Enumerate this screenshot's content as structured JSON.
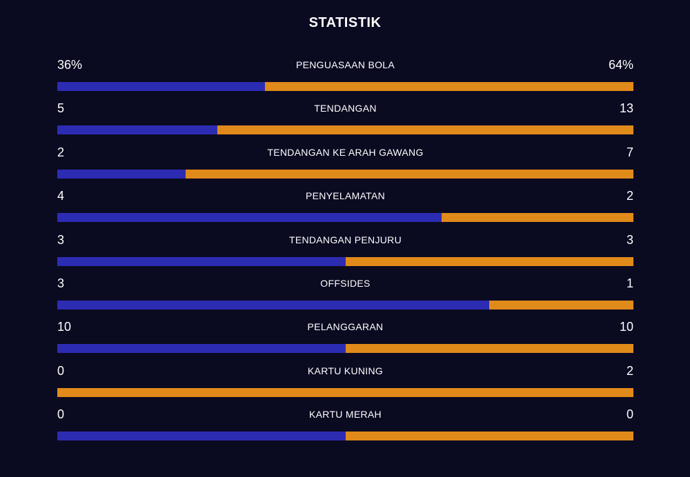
{
  "title": "STATISTIK",
  "colors": {
    "home": "#2c2cb3",
    "away": "#e08a1a",
    "background": "#0a0a21"
  },
  "stats": [
    {
      "label": "PENGUASAAN BOLA",
      "home": "36%",
      "away": "64%",
      "home_share": 0.36
    },
    {
      "label": "TENDANGAN",
      "home": "5",
      "away": "13",
      "home_share": 0.2778
    },
    {
      "label": "TENDANGAN KE ARAH GAWANG",
      "home": "2",
      "away": "7",
      "home_share": 0.2222
    },
    {
      "label": "PENYELAMATAN",
      "home": "4",
      "away": "2",
      "home_share": 0.6667
    },
    {
      "label": "TENDANGAN PENJURU",
      "home": "3",
      "away": "3",
      "home_share": 0.5
    },
    {
      "label": "OFFSIDES",
      "home": "3",
      "away": "1",
      "home_share": 0.75
    },
    {
      "label": "PELANGGARAN",
      "home": "10",
      "away": "10",
      "home_share": 0.5
    },
    {
      "label": "KARTU KUNING",
      "home": "0",
      "away": "2",
      "home_share": 0
    },
    {
      "label": "KARTU MERAH",
      "home": "0",
      "away": "0",
      "home_share": 0.5
    }
  ]
}
